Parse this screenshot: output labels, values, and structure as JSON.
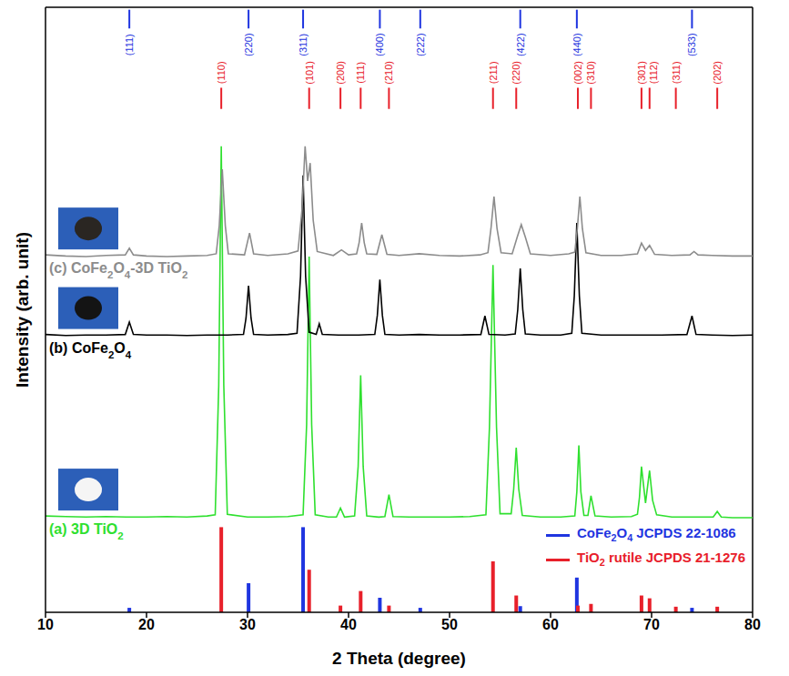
{
  "chart_data": {
    "type": "line",
    "x_label": "2 Theta (degree)",
    "y_label": "Intensity (arb. unit)",
    "xlim": [
      10,
      80
    ],
    "xticks": [
      10,
      20,
      30,
      40,
      50,
      60,
      70,
      80
    ],
    "ylim": [
      0,
      108
    ],
    "tick_labels": "x",
    "legend": "lower right",
    "series": [
      {
        "name": "(a) 3D TiO2",
        "color": "#2fe02f",
        "x": [
          10,
          12,
          14,
          16,
          18,
          20,
          22,
          24,
          26,
          26.8,
          27.15,
          27.4,
          27.65,
          28.0,
          30,
          32,
          34,
          35.5,
          35.85,
          36.1,
          36.35,
          36.7,
          38,
          38.8,
          39.2,
          39.6,
          40.6,
          40.95,
          41.2,
          41.45,
          41.8,
          43,
          43.6,
          44.0,
          44.4,
          46,
          48,
          50,
          52,
          53.6,
          53.95,
          54.3,
          54.65,
          55.0,
          56.1,
          56.35,
          56.6,
          56.85,
          57.2,
          59,
          61,
          62.4,
          62.6,
          62.8,
          63.0,
          63.3,
          63.7,
          64.0,
          64.4,
          66,
          68,
          68.6,
          68.8,
          69.0,
          69.4,
          69.8,
          70.1,
          70.5,
          72,
          74,
          76.1,
          76.5,
          76.9,
          78,
          80
        ],
        "values": [
          17.2,
          17.1,
          17.0,
          17.1,
          17.0,
          17.0,
          17.1,
          17.0,
          17.2,
          17.4,
          40.5,
          83.2,
          40.5,
          17.5,
          17.0,
          17.0,
          17.1,
          17.4,
          33.5,
          63.5,
          33.5,
          17.4,
          17.0,
          17.0,
          18.6,
          17.0,
          17.2,
          26,
          42.3,
          26,
          17.2,
          17.0,
          17.1,
          21.0,
          17.1,
          17.0,
          17.0,
          17.0,
          17.1,
          17.4,
          33,
          62.0,
          33,
          17.6,
          17.6,
          22,
          29.4,
          22,
          17.3,
          17.0,
          17.0,
          17.2,
          21.5,
          29.8,
          21.5,
          17.3,
          17.3,
          20.8,
          17.2,
          17.0,
          17.1,
          17.5,
          20.5,
          26.0,
          19.5,
          25.3,
          20.0,
          17.4,
          17.0,
          17.0,
          17.0,
          18.0,
          17.0,
          16.9,
          16.9
        ]
      },
      {
        "name": "(b) CoFe2O4",
        "color": "#000000",
        "x": [
          10,
          12,
          14,
          16,
          17.9,
          18.3,
          18.7,
          20,
          22,
          24,
          26,
          28,
          29.6,
          29.85,
          30.1,
          30.35,
          30.6,
          32,
          34,
          34.9,
          35.25,
          35.5,
          35.75,
          36.1,
          36.8,
          37.1,
          37.4,
          39,
          41,
          42.6,
          42.85,
          43.1,
          43.35,
          43.6,
          45,
          47,
          49,
          51,
          53.1,
          53.5,
          53.9,
          55.5,
          56.5,
          56.75,
          57.0,
          57.25,
          57.5,
          59,
          61,
          62.1,
          62.35,
          62.6,
          62.85,
          63.1,
          65,
          67,
          69,
          71,
          73.5,
          74.0,
          74.4,
          76,
          78,
          80
        ],
        "values": [
          49.6,
          49.4,
          49.5,
          49.5,
          49.6,
          51.8,
          49.6,
          49.5,
          49.5,
          49.4,
          49.5,
          49.5,
          49.6,
          52.5,
          58.3,
          52.5,
          49.6,
          49.5,
          49.6,
          49.8,
          60,
          78.0,
          60,
          50.0,
          49.6,
          51.5,
          49.6,
          49.5,
          49.5,
          49.6,
          53,
          59.4,
          53,
          49.6,
          49.5,
          49.6,
          49.5,
          49.5,
          49.6,
          52.9,
          49.6,
          49.5,
          49.7,
          54,
          61.4,
          54,
          49.7,
          49.5,
          49.5,
          49.8,
          56.5,
          69.5,
          56.5,
          49.8,
          49.5,
          49.5,
          49.5,
          49.5,
          49.6,
          52.9,
          49.6,
          49.5,
          49.4,
          49.5
        ]
      },
      {
        "name": "(c) CoFe2O4-3D TiO2",
        "color": "#8c8c8c",
        "x": [
          10,
          12,
          14,
          16,
          17.9,
          18.3,
          18.7,
          20,
          22,
          24,
          26,
          26.9,
          27.2,
          27.5,
          27.8,
          28.1,
          29.7,
          30.2,
          30.6,
          32,
          34,
          35.0,
          35.4,
          35.7,
          35.95,
          36.2,
          36.5,
          36.9,
          38.5,
          39.3,
          40.0,
          40.8,
          41.05,
          41.3,
          41.55,
          41.8,
          42.8,
          43.3,
          43.8,
          45,
          47,
          49,
          51,
          53,
          53.8,
          54.1,
          54.4,
          54.7,
          55.1,
          56.2,
          56.7,
          57.1,
          57.5,
          58.0,
          60,
          61.8,
          62.4,
          62.65,
          62.9,
          63.15,
          63.5,
          65,
          67,
          68.6,
          69.0,
          69.4,
          69.8,
          70.3,
          72,
          73.8,
          74.2,
          74.6,
          76,
          78,
          80
        ],
        "values": [
          63.8,
          63.6,
          63.5,
          63.7,
          63.8,
          65.0,
          63.8,
          63.6,
          63.5,
          63.6,
          63.7,
          64.0,
          69,
          79.1,
          69,
          64.0,
          63.8,
          67.7,
          64.0,
          63.7,
          64.0,
          64.5,
          72,
          83.2,
          77,
          80.2,
          70,
          64.4,
          63.7,
          64.7,
          63.8,
          64.0,
          66,
          69.5,
          66,
          64.0,
          63.9,
          67.4,
          63.9,
          63.7,
          64.0,
          63.7,
          63.6,
          63.8,
          64.2,
          68.5,
          74.2,
          68.5,
          64.2,
          64.0,
          67,
          69.2,
          67,
          64.0,
          63.7,
          64.0,
          64.3,
          68.5,
          74.2,
          68.5,
          64.2,
          63.7,
          63.7,
          64.0,
          65.9,
          64.6,
          65.5,
          63.9,
          63.7,
          63.8,
          64.4,
          63.8,
          63.7,
          63.6,
          63.6
        ]
      },
      {
        "name": "CoFe2O4 JCPDS 22-1086",
        "type": "stick",
        "color": "#1f35e0",
        "x": [
          18.3,
          30.1,
          35.5,
          43.1,
          47.1,
          57.0,
          62.6,
          74.0
        ],
        "values": [
          0.8,
          5.2,
          15.2,
          2.6,
          0.8,
          1.1,
          6.2,
          0.8
        ],
        "hkl": [
          "(111)",
          "(220)",
          "(311)",
          "(400)",
          "(222)",
          "(422)",
          "(440)",
          "(533)"
        ]
      },
      {
        "name": "TiO2 rutile JCPDS 21-1276",
        "type": "stick",
        "color": "#e8202a",
        "x": [
          27.4,
          36.1,
          39.2,
          41.2,
          44.0,
          54.3,
          56.6,
          62.7,
          64.0,
          69.0,
          69.8,
          72.4,
          76.5
        ],
        "values": [
          15.2,
          7.6,
          1.2,
          3.8,
          1.2,
          9.1,
          3.0,
          1.2,
          1.5,
          3.0,
          2.5,
          1.0,
          1.0
        ],
        "hkl": [
          "(110)",
          "(101)",
          "(200)",
          "(111)",
          "(210)",
          "(211)",
          "(220)",
          "(002)",
          "(310)",
          "(301)",
          "(112)",
          "(311)",
          "(202)"
        ]
      }
    ]
  }
}
